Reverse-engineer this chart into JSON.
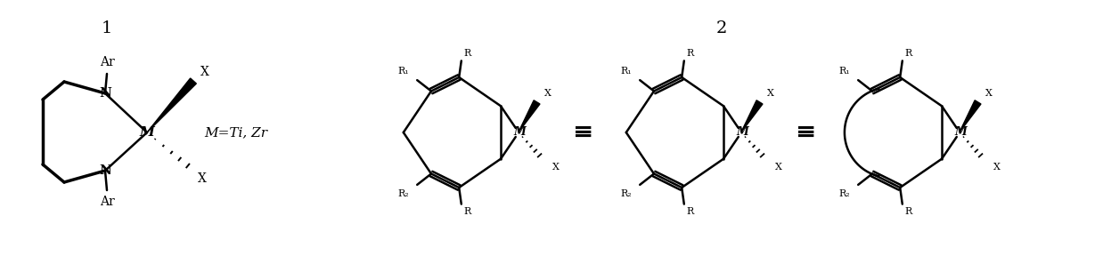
{
  "figsize": [
    12.38,
    2.97
  ],
  "dpi": 100,
  "bg_color": "#ffffff",
  "lw": 1.8,
  "lw_bold": 2.5,
  "fs": 9,
  "fs_label": 14,
  "fs_eq": 16,
  "xlim": [
    0,
    1238
  ],
  "ylim": [
    0,
    297
  ]
}
